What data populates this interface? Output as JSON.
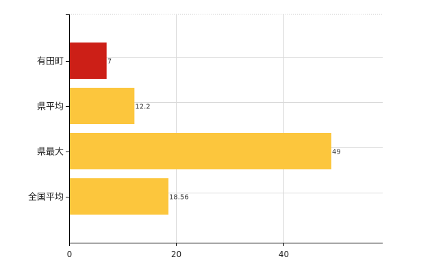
{
  "chart_data": {
    "type": "bar",
    "orientation": "horizontal",
    "categories": [
      "有田町",
      "県平均",
      "県最大",
      "全国平均"
    ],
    "values": [
      7,
      12.2,
      49,
      18.56
    ],
    "value_labels": [
      "7",
      "12.2",
      "49",
      "18.56"
    ],
    "bar_colors": [
      "#cc1f17",
      "#fcc63d",
      "#fcc63d",
      "#fcc63d"
    ],
    "xlim": [
      0,
      58.6
    ],
    "x_ticks": [
      0,
      20,
      40
    ],
    "x_tick_labels": [
      "0",
      "20",
      "40"
    ],
    "grid": true,
    "legend": "none",
    "title": "",
    "xlabel": "",
    "ylabel": ""
  }
}
